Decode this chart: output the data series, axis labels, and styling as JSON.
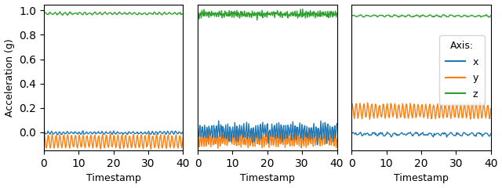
{
  "xlabel": "Timestamp",
  "ylabel": "Acceleration (g)",
  "xlim": [
    0,
    40
  ],
  "ylim": [
    -0.15,
    1.05
  ],
  "yticks": [
    0.0,
    0.2,
    0.4,
    0.6,
    0.8,
    1.0
  ],
  "xticks": [
    0,
    10,
    20,
    30,
    40
  ],
  "color_x": "#1f77b4",
  "color_y": "#ff7f0e",
  "color_z": "#2ca02c",
  "legend_title": "Axis:",
  "figsize": [
    6.4,
    2.4
  ],
  "dpi": 100,
  "linewidth": 1.0
}
